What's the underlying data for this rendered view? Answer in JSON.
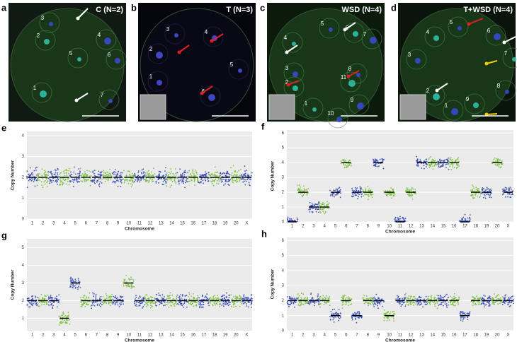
{
  "chromosomes": [
    "1",
    "2",
    "3",
    "4",
    "5",
    "6",
    "7",
    "8",
    "9",
    "10",
    "11",
    "12",
    "13",
    "14",
    "15",
    "16",
    "17",
    "18",
    "19",
    "20",
    "X"
  ],
  "panels": [
    {
      "letter": "a",
      "title": "C (N=2)",
      "cells": [
        "3",
        "2",
        "4",
        "5",
        "6",
        "1",
        "7"
      ]
    },
    {
      "letter": "b",
      "title": "T (N=3)",
      "cells": [
        "3",
        "4",
        "2",
        "5",
        "1",
        "6"
      ]
    },
    {
      "letter": "c",
      "title": "WSD (N=4)",
      "cells": [
        "5",
        "6",
        "7",
        "4",
        "3",
        "11",
        "8",
        "2",
        "9",
        "1",
        "10"
      ]
    },
    {
      "letter": "d",
      "title": "T+WSD (N=4)",
      "cells": [
        "5",
        "4",
        "6",
        "7",
        "3",
        "2",
        "8",
        "9",
        "1"
      ]
    }
  ],
  "plots": [
    {
      "letter": "e",
      "y_label": "Copy Number",
      "x_label": "Chromosome",
      "ylim": [
        0,
        4.2
      ],
      "yticks": [
        0,
        1,
        2,
        3,
        4
      ],
      "copy_number": [
        2,
        2,
        2,
        2,
        2,
        2,
        2,
        2,
        2,
        2,
        2,
        2,
        2,
        2,
        2,
        2,
        2,
        2,
        2,
        2,
        2
      ]
    },
    {
      "letter": "f",
      "y_label": "Copy Number",
      "x_label": "Chromosome",
      "ylim": [
        0,
        6.2
      ],
      "yticks": [
        0,
        1,
        2,
        3,
        4,
        5,
        6
      ],
      "copy_number": [
        0,
        2,
        1,
        1,
        2,
        4,
        2,
        2,
        4,
        2,
        0,
        2,
        4,
        4,
        4,
        4,
        0,
        2,
        2,
        4,
        2
      ]
    },
    {
      "letter": "g",
      "y_label": "Copy Number",
      "x_label": "Chromosome",
      "ylim": [
        0.3,
        5.5
      ],
      "yticks": [
        1,
        2,
        3,
        4,
        5
      ],
      "copy_number": [
        2,
        2,
        2,
        1,
        3,
        2,
        2,
        2,
        2,
        3,
        2,
        2,
        2,
        2,
        2,
        2,
        2,
        2,
        2,
        2,
        2
      ]
    },
    {
      "letter": "h",
      "y_label": "Copy Number",
      "x_label": "Chromosome",
      "ylim": [
        0,
        6.2
      ],
      "yticks": [
        0,
        1,
        2,
        3,
        4,
        5,
        6
      ],
      "copy_number": [
        2,
        2,
        2,
        2,
        1,
        2,
        1,
        2,
        2,
        1,
        2,
        2,
        2,
        2,
        2,
        2,
        1,
        2,
        2,
        2,
        2
      ]
    }
  ]
}
